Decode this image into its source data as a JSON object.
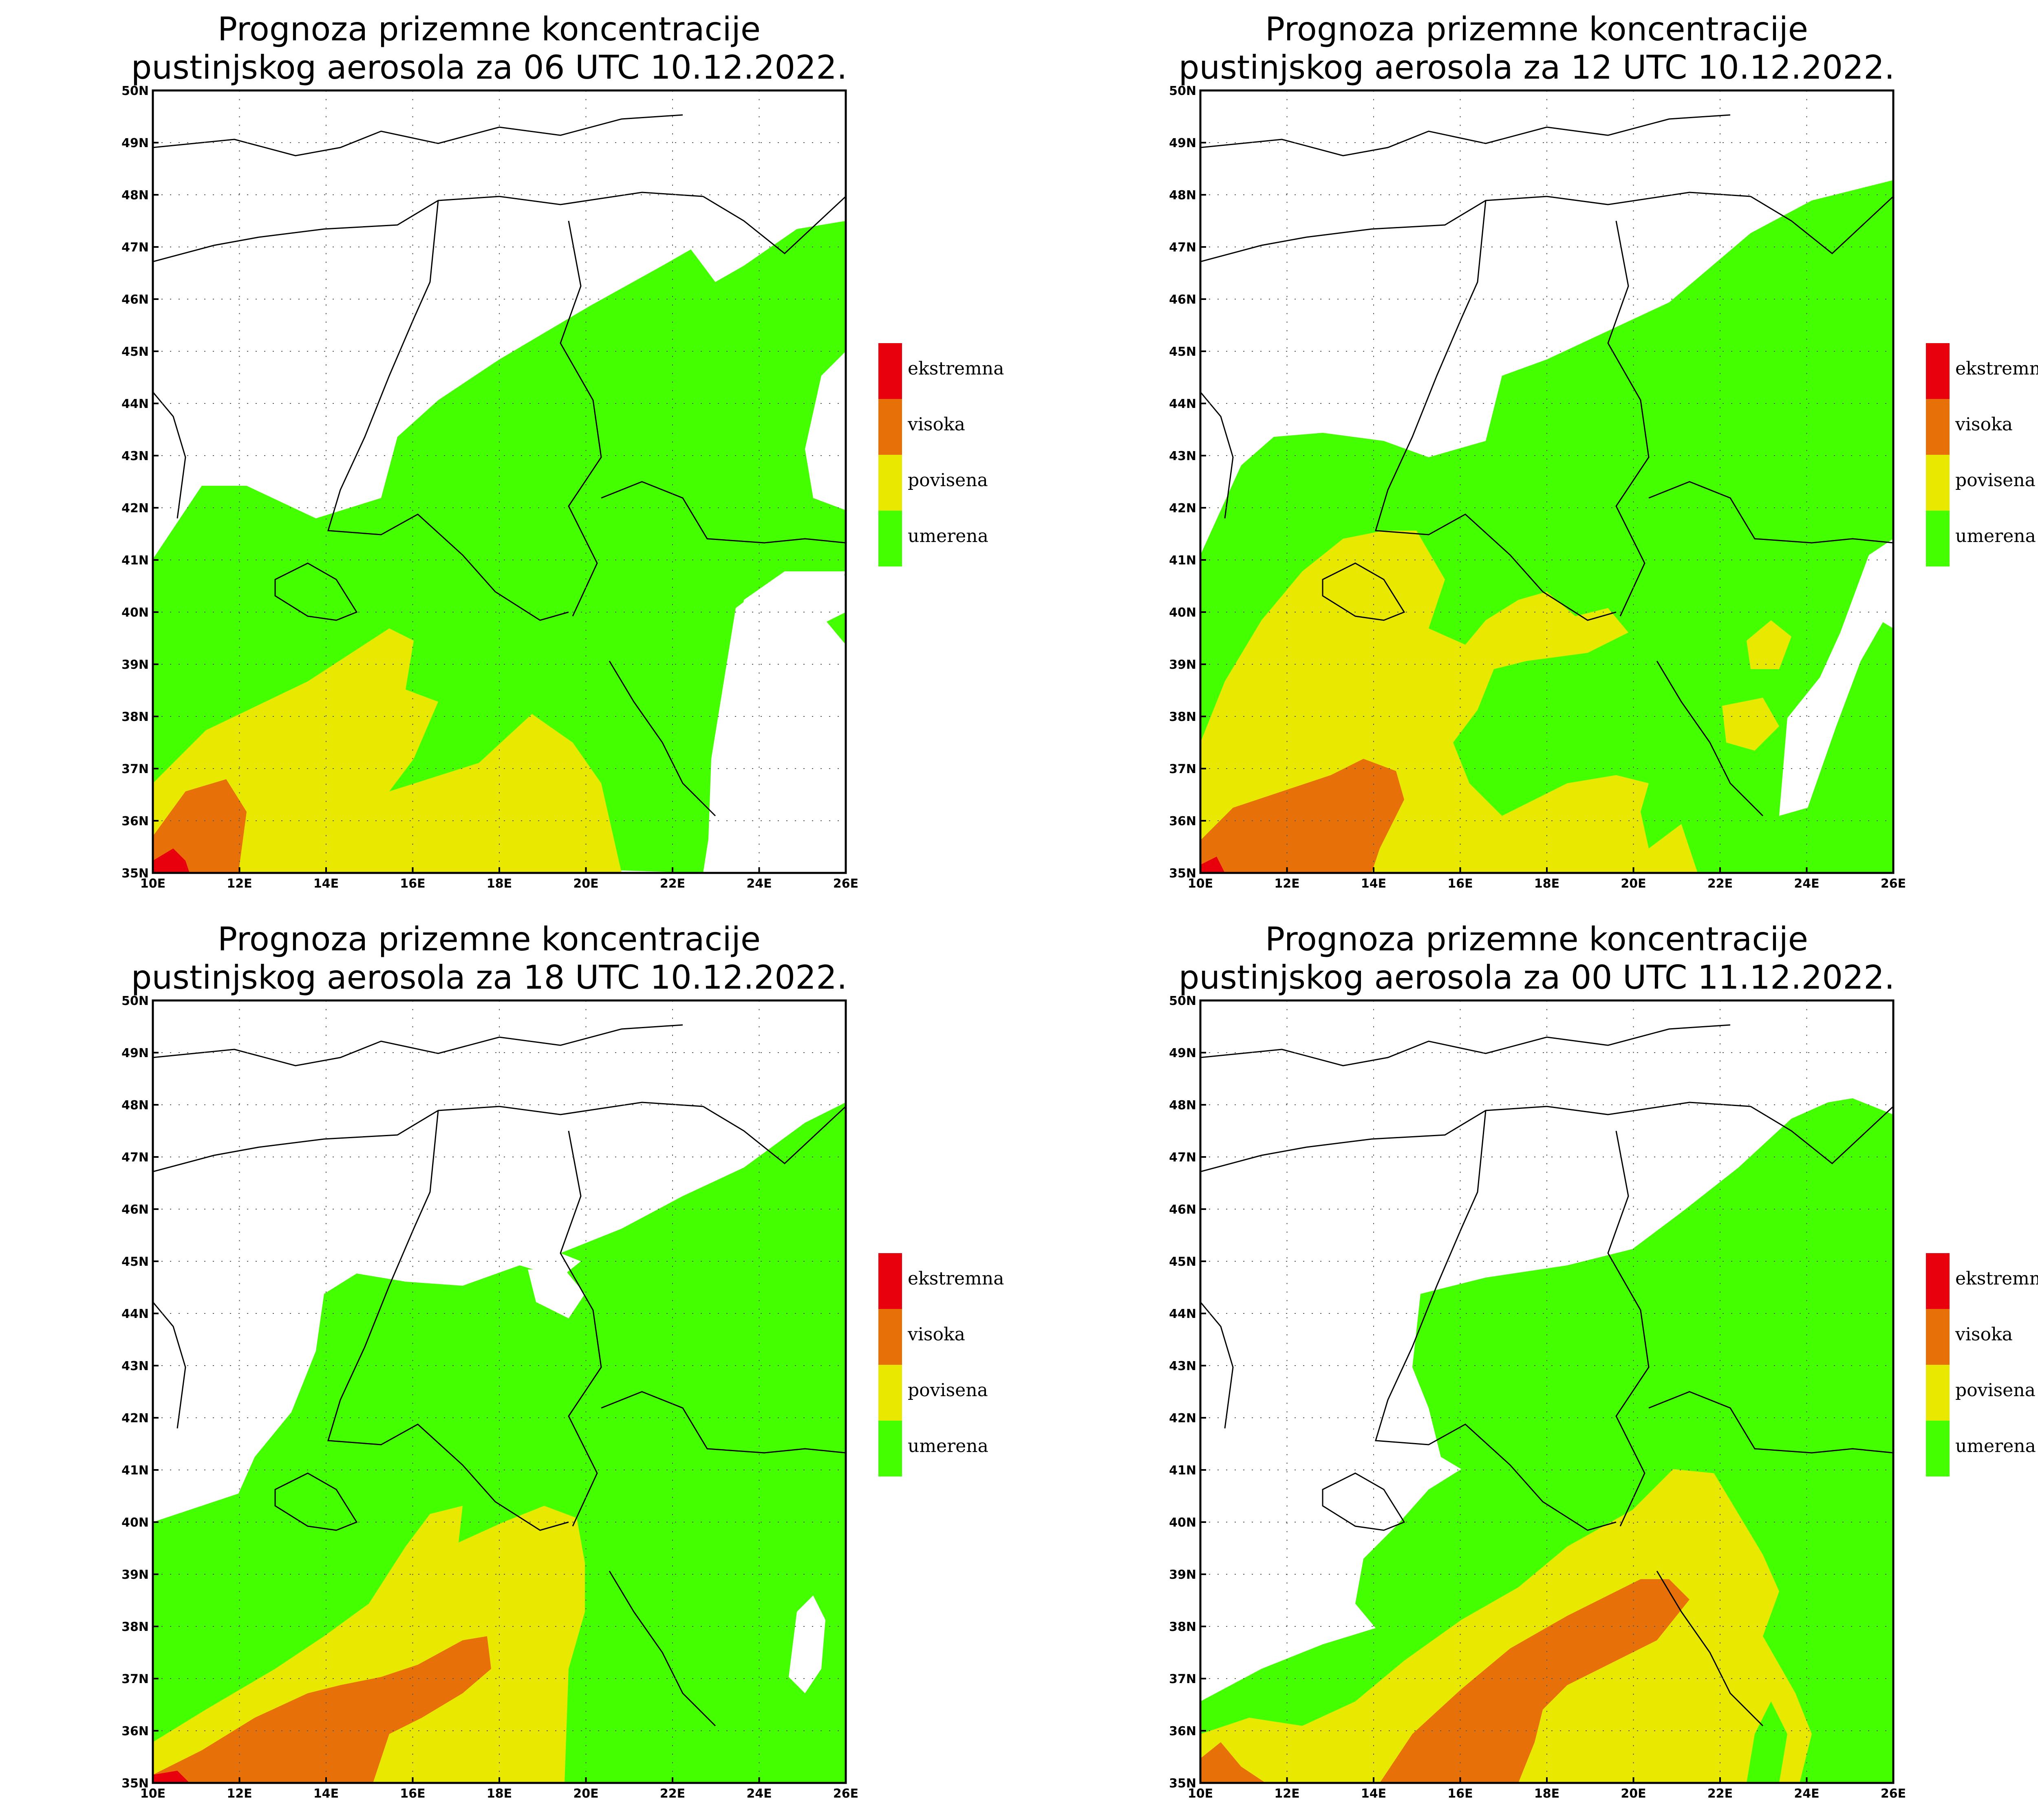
{
  "legend": {
    "items": [
      {
        "label": "ekstremna",
        "color": "#e8000c"
      },
      {
        "label": "visoka",
        "color": "#e87008"
      },
      {
        "label": "povisena",
        "color": "#e8e800"
      },
      {
        "label": "umerena",
        "color": "#44ff00"
      }
    ]
  },
  "axes": {
    "lon_ticks": [
      "10E",
      "12E",
      "14E",
      "16E",
      "18E",
      "20E",
      "22E",
      "24E",
      "26E"
    ],
    "lat_ticks": [
      "35N",
      "36N",
      "37N",
      "38N",
      "39N",
      "40N",
      "41N",
      "42N",
      "43N",
      "44N",
      "45N",
      "46N",
      "47N",
      "48N",
      "49N",
      "50N"
    ],
    "lon_range": [
      10,
      26
    ],
    "lat_range": [
      35,
      50
    ]
  },
  "panels": [
    {
      "title_line1": "Prognoza prizemne koncentracije",
      "title_line2": "pustinjskog aerosola za 06 UTC 10.12.2022."
    },
    {
      "title_line1": "Prognoza prizemne koncentracije",
      "title_line2": "pustinjskog aerosola za 12 UTC 10.12.2022."
    },
    {
      "title_line1": "Prognoza prizemne koncentracije",
      "title_line2": "pustinjskog aerosola za 18 UTC 10.12.2022."
    },
    {
      "title_line1": "Prognoza prizemne koncentracije",
      "title_line2": "pustinjskog aerosola za 00 UTC 11.12.2022."
    }
  ]
}
